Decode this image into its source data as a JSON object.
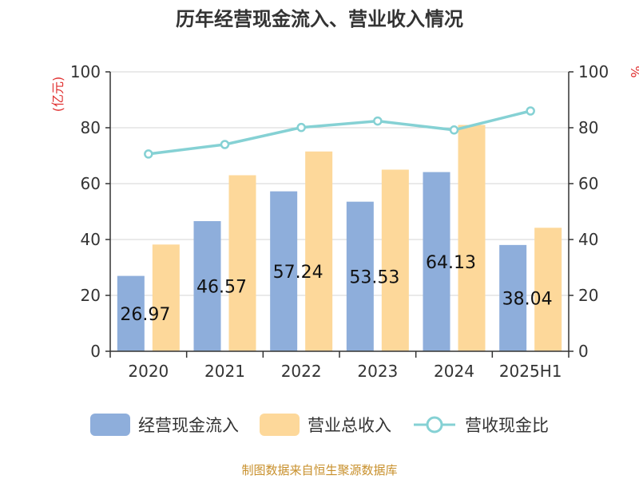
{
  "chart_data": {
    "type": "bar",
    "title": "历年经营现金流入、营业收入情况",
    "categories": [
      "2020",
      "2021",
      "2022",
      "2023",
      "2024",
      "2025H1"
    ],
    "series": [
      {
        "name": "经营现金流入",
        "kind": "bar",
        "axis": "left",
        "color": "#8eaedb",
        "values": [
          26.97,
          46.57,
          57.24,
          53.53,
          64.13,
          38.04
        ],
        "labels": [
          "26.97",
          "46.57",
          "57.24",
          "53.53",
          "64.13",
          "38.04"
        ]
      },
      {
        "name": "营业总收入",
        "kind": "bar",
        "axis": "left",
        "color": "#fdd89a",
        "values": [
          38.2,
          63.0,
          71.5,
          65.0,
          81.0,
          44.2
        ]
      },
      {
        "name": "营收现金比",
        "kind": "line",
        "axis": "right",
        "color": "#85d1d4",
        "values": [
          70.6,
          74.0,
          80.1,
          82.4,
          79.2,
          86.0
        ]
      }
    ],
    "left_axis": {
      "unit": "(亿元)",
      "ylim": [
        0,
        100
      ],
      "ticks": [
        0,
        20,
        40,
        60,
        80,
        100
      ]
    },
    "right_axis": {
      "unit": "%",
      "ylim": [
        0,
        100
      ],
      "ticks": [
        0,
        20,
        40,
        60,
        80,
        100
      ]
    },
    "grid": true,
    "legend_position": "bottom",
    "source_note": "制图数据来自恒生聚源数据库"
  }
}
